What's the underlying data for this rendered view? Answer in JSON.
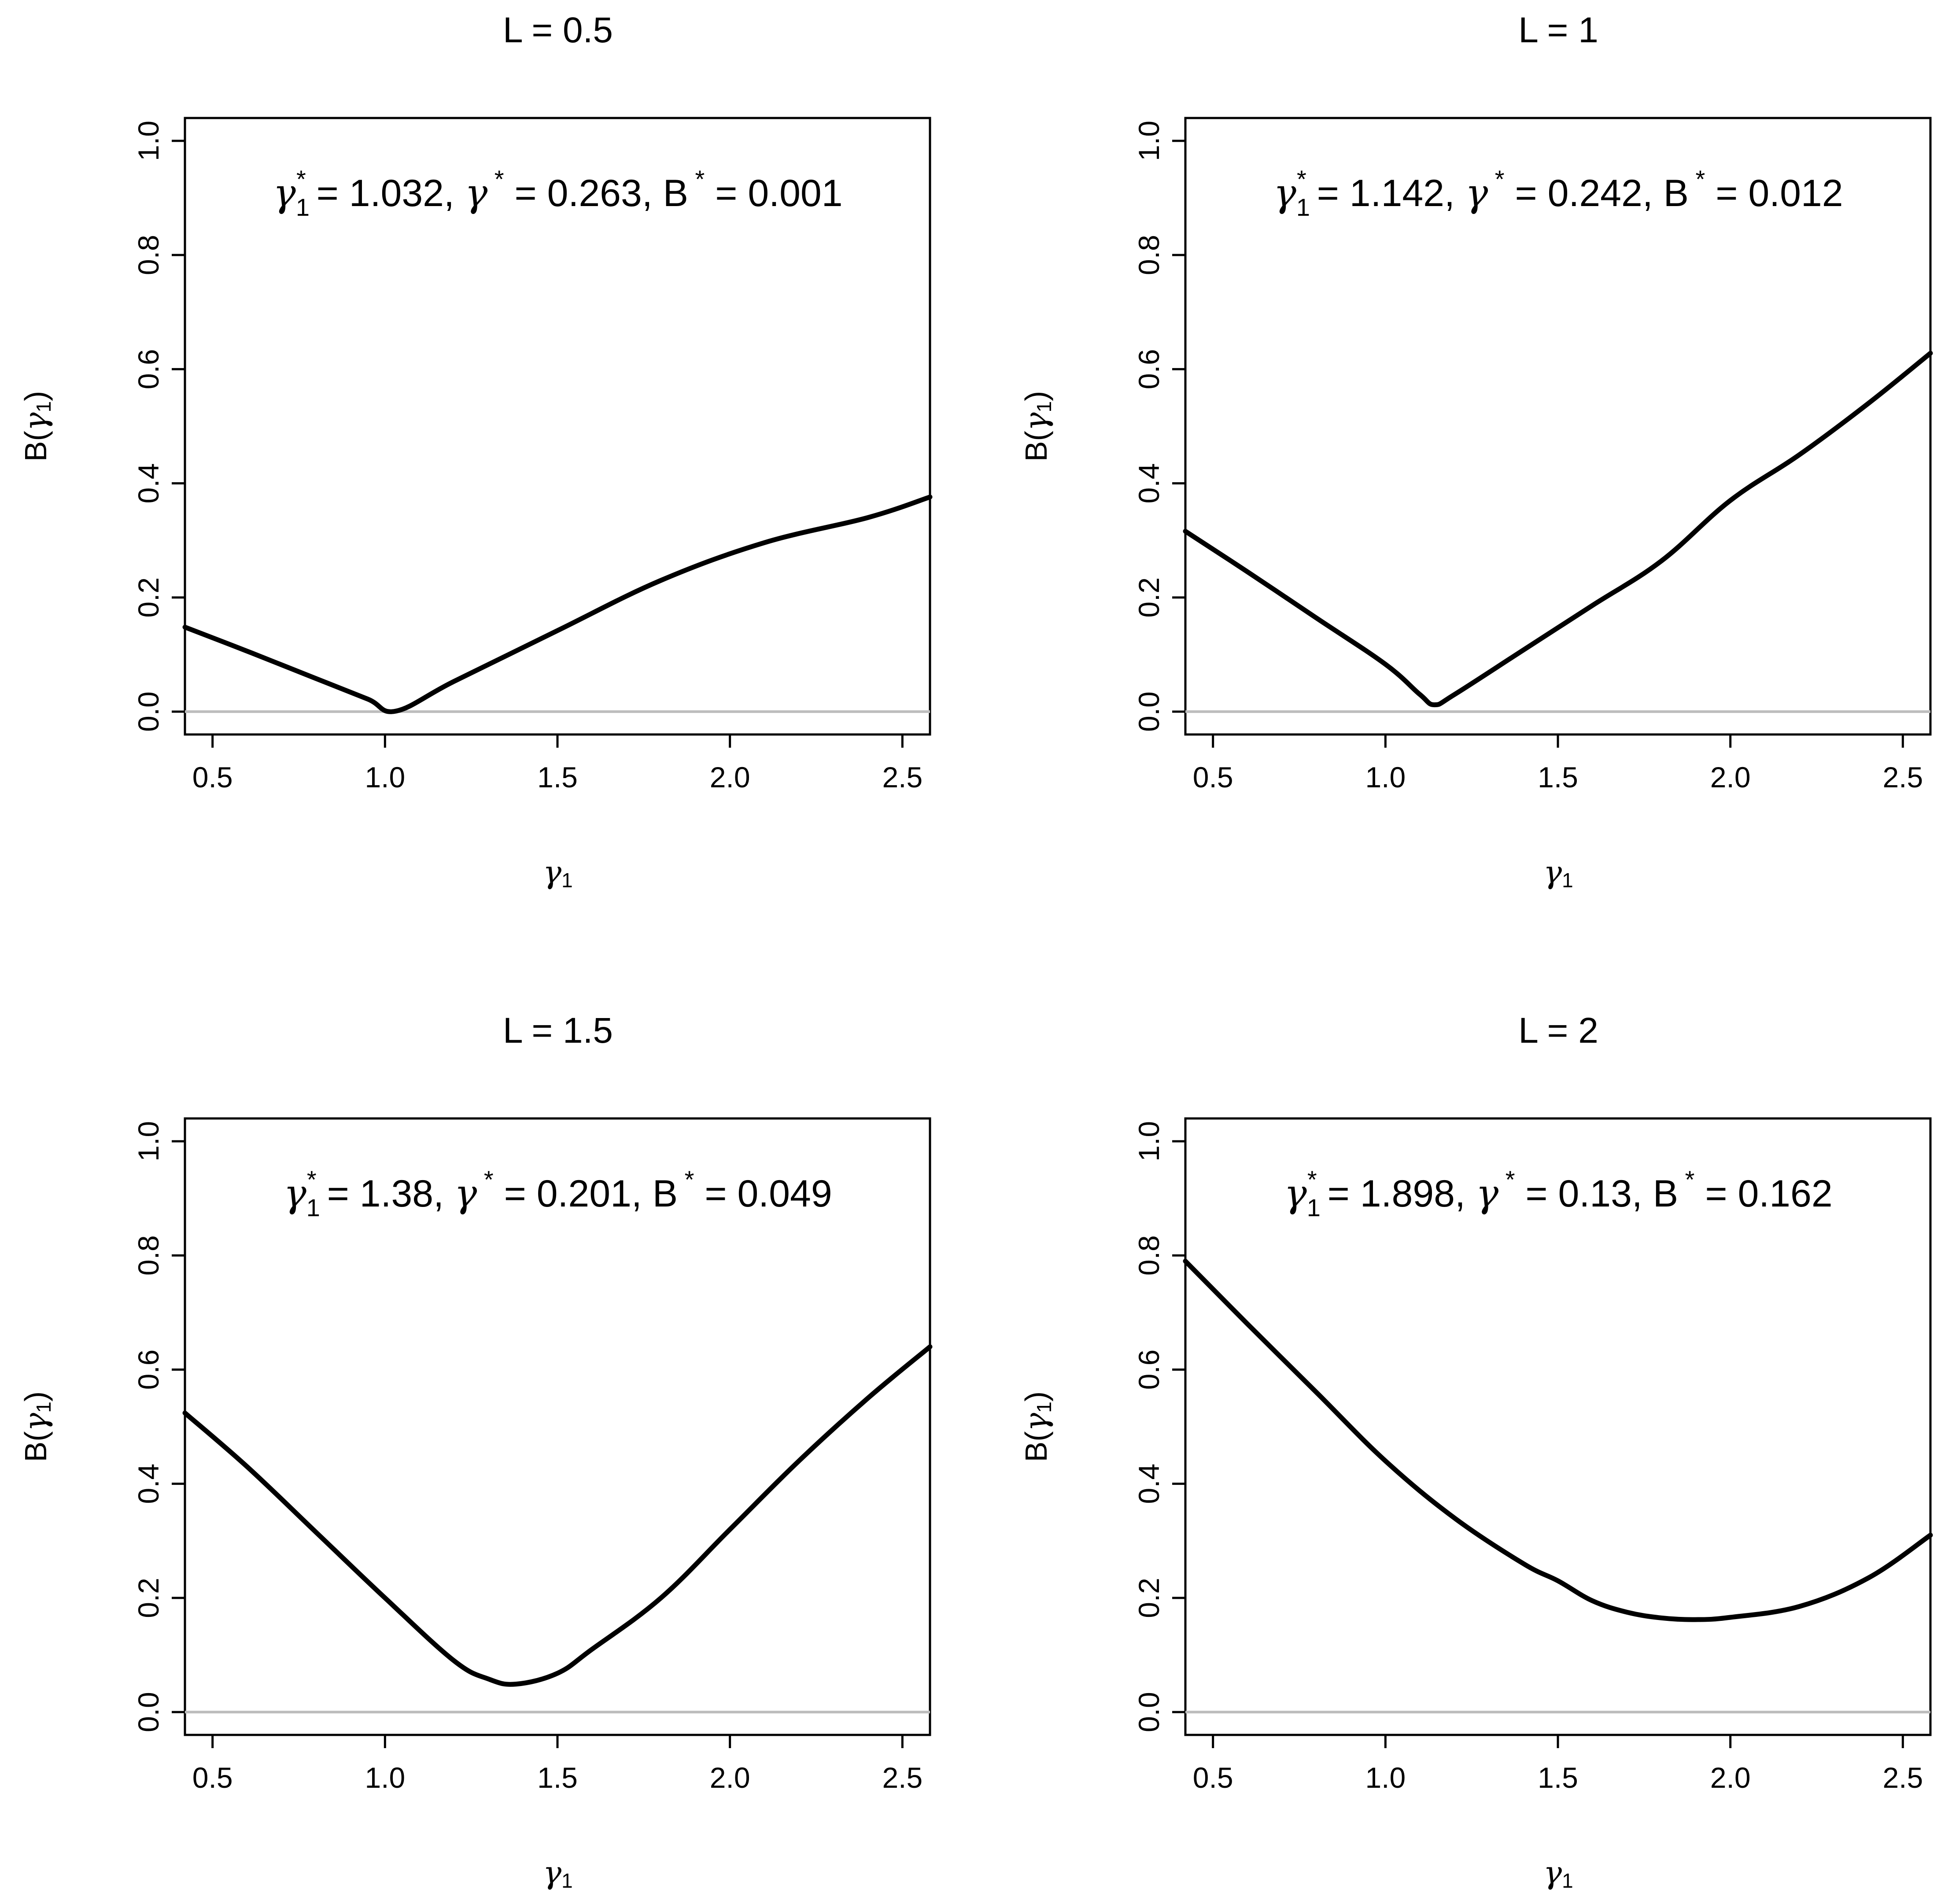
{
  "chart_data": [
    {
      "type": "line",
      "title": "L = 0.5",
      "xlabel": "γ1",
      "ylabel": "B(γ1)",
      "xlim": [
        0.42,
        2.58
      ],
      "ylim": [
        -0.04,
        1.04
      ],
      "xticks": [
        "0.5",
        "1.0",
        "1.5",
        "2.0",
        "2.5"
      ],
      "yticks": [
        "0.0",
        "0.2",
        "0.4",
        "0.6",
        "0.8",
        "1.0"
      ],
      "reference_line_y": 0,
      "annotation": {
        "g1": "1.032",
        "g": "0.263",
        "b": "0.001"
      },
      "series": [
        {
          "x": [
            0.42,
            0.6,
            0.8,
            0.95,
            1.032,
            1.2,
            1.5,
            1.8,
            2.1,
            2.4,
            2.58
          ],
          "y": [
            0.148,
            0.106,
            0.058,
            0.022,
            0.001,
            0.053,
            0.142,
            0.23,
            0.296,
            0.34,
            0.376
          ]
        }
      ]
    },
    {
      "type": "line",
      "title": "L = 1",
      "xlabel": "γ1",
      "ylabel": "B(γ1)",
      "xlim": [
        0.42,
        2.58
      ],
      "ylim": [
        -0.04,
        1.04
      ],
      "xticks": [
        "0.5",
        "1.0",
        "1.5",
        "2.0",
        "2.5"
      ],
      "yticks": [
        "0.0",
        "0.2",
        "0.4",
        "0.6",
        "0.8",
        "1.0"
      ],
      "reference_line_y": 0,
      "annotation": {
        "g1": "1.142",
        "g": "0.242",
        "b": "0.012"
      },
      "series": [
        {
          "x": [
            0.42,
            0.6,
            0.8,
            1.0,
            1.1,
            1.142,
            1.2,
            1.4,
            1.6,
            1.8,
            2.0,
            2.2,
            2.4,
            2.58
          ],
          "y": [
            0.316,
            0.245,
            0.164,
            0.083,
            0.03,
            0.012,
            0.03,
            0.108,
            0.186,
            0.264,
            0.37,
            0.45,
            0.54,
            0.628
          ]
        }
      ]
    },
    {
      "type": "line",
      "title": "L = 1.5",
      "xlabel": "γ1",
      "ylabel": "B(γ1)",
      "xlim": [
        0.42,
        2.58
      ],
      "ylim": [
        -0.04,
        1.04
      ],
      "xticks": [
        "0.5",
        "1.0",
        "1.5",
        "2.0",
        "2.5"
      ],
      "yticks": [
        "0.0",
        "0.2",
        "0.4",
        "0.6",
        "0.8",
        "1.0"
      ],
      "reference_line_y": 0,
      "annotation": {
        "g1": "1.38",
        "g": "0.201",
        "b": "0.049"
      },
      "series": [
        {
          "x": [
            0.42,
            0.6,
            0.8,
            1.0,
            1.2,
            1.3,
            1.38,
            1.5,
            1.6,
            1.8,
            2.0,
            2.2,
            2.4,
            2.58
          ],
          "y": [
            0.524,
            0.43,
            0.315,
            0.2,
            0.09,
            0.058,
            0.049,
            0.068,
            0.11,
            0.2,
            0.32,
            0.44,
            0.55,
            0.64
          ]
        }
      ]
    },
    {
      "type": "line",
      "title": "L = 2",
      "xlabel": "γ1",
      "ylabel": "B(γ1)",
      "xlim": [
        0.42,
        2.58
      ],
      "ylim": [
        -0.04,
        1.04
      ],
      "xticks": [
        "0.5",
        "1.0",
        "1.5",
        "2.0",
        "2.5"
      ],
      "yticks": [
        "0.0",
        "0.2",
        "0.4",
        "0.6",
        "0.8",
        "1.0"
      ],
      "reference_line_y": 0,
      "annotation": {
        "g1": "1.898",
        "g": "0.13",
        "b": "0.162"
      },
      "series": [
        {
          "x": [
            0.42,
            0.6,
            0.8,
            1.0,
            1.2,
            1.4,
            1.5,
            1.6,
            1.7,
            1.8,
            1.898,
            2.0,
            2.2,
            2.4,
            2.58
          ],
          "y": [
            0.79,
            0.68,
            0.56,
            0.44,
            0.34,
            0.26,
            0.23,
            0.195,
            0.175,
            0.165,
            0.162,
            0.166,
            0.185,
            0.235,
            0.31
          ]
        }
      ]
    }
  ]
}
